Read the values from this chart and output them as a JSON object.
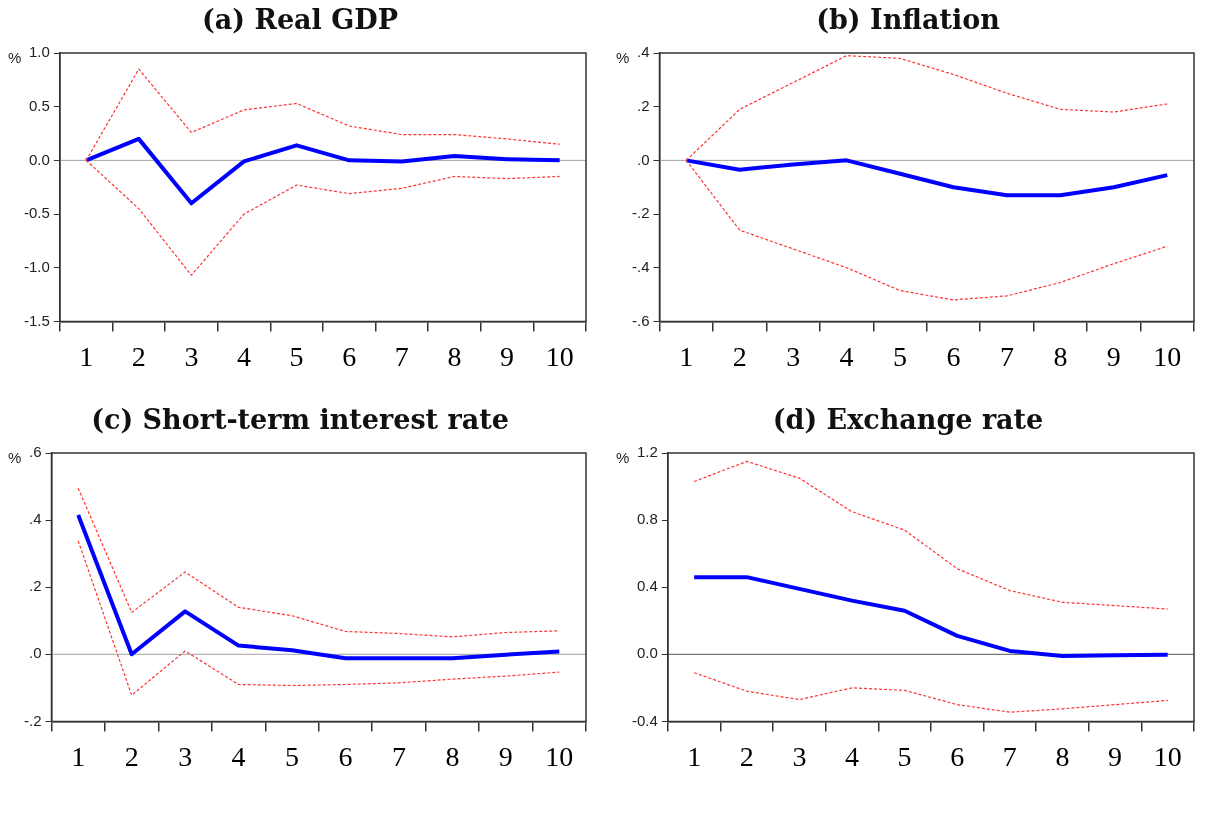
{
  "chart_data": [
    {
      "type": "line",
      "title": "(a) Real GDP",
      "ylabel": "%",
      "categories": [
        "1",
        "2",
        "3",
        "4",
        "5",
        "6",
        "7",
        "8",
        "9",
        "10"
      ],
      "ylim": [
        -1.5,
        1.0
      ],
      "yticks": [
        {
          "value": -1.5,
          "label": "-1.5"
        },
        {
          "value": -1,
          "label": "-1.0"
        },
        {
          "value": -0.5,
          "label": "-0.5"
        },
        {
          "value": 0,
          "label": "0.0"
        },
        {
          "value": 0.5,
          "label": "0.5"
        },
        {
          "value": 1,
          "label": "1.0"
        }
      ],
      "ref_lines": [
        {
          "axis": "y",
          "value": 0,
          "color": "#a0a0a0"
        }
      ],
      "series": [
        {
          "color": "#0000ff",
          "line_style": "solid",
          "values": [
            0,
            0.2,
            -0.4,
            -0.01,
            0.14,
            0,
            -0.01,
            0.04,
            0.01,
            0
          ]
        },
        {
          "color": "#ff3333",
          "line_style": "dashed",
          "values": [
            0,
            0.85,
            0.26,
            0.47,
            0.53,
            0.32,
            0.24,
            0.24,
            0.2,
            0.15
          ]
        },
        {
          "color": "#ff3333",
          "line_style": "dashed",
          "values": [
            0,
            -0.45,
            -1.07,
            -0.5,
            -0.23,
            -0.31,
            -0.26,
            -0.15,
            -0.17,
            -0.15
          ]
        }
      ]
    },
    {
      "type": "line",
      "title": "(b) Inflation",
      "ylabel": "%",
      "categories": [
        "1",
        "2",
        "3",
        "4",
        "5",
        "6",
        "7",
        "8",
        "9",
        "10"
      ],
      "ylim": [
        -0.6,
        0.4
      ],
      "yticks": [
        {
          "value": -0.6,
          "label": "-.6"
        },
        {
          "value": -0.4,
          "label": "-.4"
        },
        {
          "value": -0.2,
          "label": "-.2"
        },
        {
          "value": 0,
          "label": ".0"
        },
        {
          "value": 0.2,
          "label": ".2"
        },
        {
          "value": 0.4,
          "label": ".4"
        }
      ],
      "ref_lines": [
        {
          "axis": "y",
          "value": 0,
          "color": "#a0a0a0"
        }
      ],
      "series": [
        {
          "color": "#0000ff",
          "line_style": "solid",
          "values": [
            0,
            -0.035,
            -0.015,
            0,
            -0.05,
            -0.1,
            -0.13,
            -0.13,
            -0.1,
            -0.055
          ]
        },
        {
          "color": "#ff3333",
          "line_style": "dashed",
          "values": [
            0,
            0.19,
            0.29,
            0.39,
            0.38,
            0.32,
            0.25,
            0.19,
            0.18,
            0.21
          ]
        },
        {
          "color": "#ff3333",
          "line_style": "dashed",
          "values": [
            0,
            -0.26,
            -0.33,
            -0.4,
            -0.485,
            -0.52,
            -0.505,
            -0.455,
            -0.385,
            -0.32
          ]
        }
      ]
    },
    {
      "type": "line",
      "title": "(c) Short-term interest rate",
      "ylabel": "%",
      "categories": [
        "1",
        "2",
        "3",
        "4",
        "5",
        "6",
        "7",
        "8",
        "9",
        "10"
      ],
      "ylim": [
        -0.2,
        0.6
      ],
      "yticks": [
        {
          "value": -0.2,
          "label": "-.2"
        },
        {
          "value": 0,
          "label": ".0"
        },
        {
          "value": 0.2,
          "label": ".2"
        },
        {
          "value": 0.4,
          "label": ".4"
        },
        {
          "value": 0.6,
          "label": ".6"
        }
      ],
      "ref_lines": [
        {
          "axis": "y",
          "value": 0,
          "color": "#a0a0a0"
        }
      ],
      "series": [
        {
          "color": "#0000ff",
          "line_style": "solid",
          "values": [
            0.415,
            0,
            0.128,
            0.026,
            0.012,
            -0.012,
            -0.012,
            -0.012,
            -0.001,
            0.008
          ]
        },
        {
          "color": "#ff3333",
          "line_style": "dashed",
          "values": [
            0.495,
            0.125,
            0.245,
            0.14,
            0.115,
            0.068,
            0.062,
            0.052,
            0.065,
            0.07
          ]
        },
        {
          "color": "#ff3333",
          "line_style": "dashed",
          "values": [
            0.338,
            -0.122,
            0.01,
            -0.09,
            -0.093,
            -0.09,
            -0.085,
            -0.074,
            -0.065,
            -0.053
          ]
        }
      ]
    },
    {
      "type": "line",
      "title": "(d) Exchange rate",
      "ylabel": "%",
      "categories": [
        "1",
        "2",
        "3",
        "4",
        "5",
        "6",
        "7",
        "8",
        "9",
        "10"
      ],
      "ylim": [
        -0.4,
        1.2
      ],
      "yticks": [
        {
          "value": -0.4,
          "label": "-0.4"
        },
        {
          "value": 0,
          "label": "0.0"
        },
        {
          "value": 0.4,
          "label": "0.4"
        },
        {
          "value": 0.8,
          "label": "0.8"
        },
        {
          "value": 1.2,
          "label": "1.2"
        }
      ],
      "ref_lines": [
        {
          "axis": "y",
          "value": 0,
          "color": "#555555"
        }
      ],
      "series": [
        {
          "color": "#0000ff",
          "line_style": "solid",
          "values": [
            0.46,
            0.46,
            0.39,
            0.32,
            0.26,
            0.11,
            0.02,
            -0.01,
            -0.005,
            -0.003
          ]
        },
        {
          "color": "#ff3333",
          "line_style": "dashed",
          "values": [
            1.03,
            1.15,
            1.05,
            0.85,
            0.74,
            0.51,
            0.38,
            0.31,
            0.29,
            0.27
          ]
        },
        {
          "color": "#ff3333",
          "line_style": "dashed",
          "values": [
            -0.11,
            -0.22,
            -0.27,
            -0.2,
            -0.215,
            -0.3,
            -0.345,
            -0.325,
            -0.3,
            -0.275
          ]
        }
      ]
    }
  ]
}
